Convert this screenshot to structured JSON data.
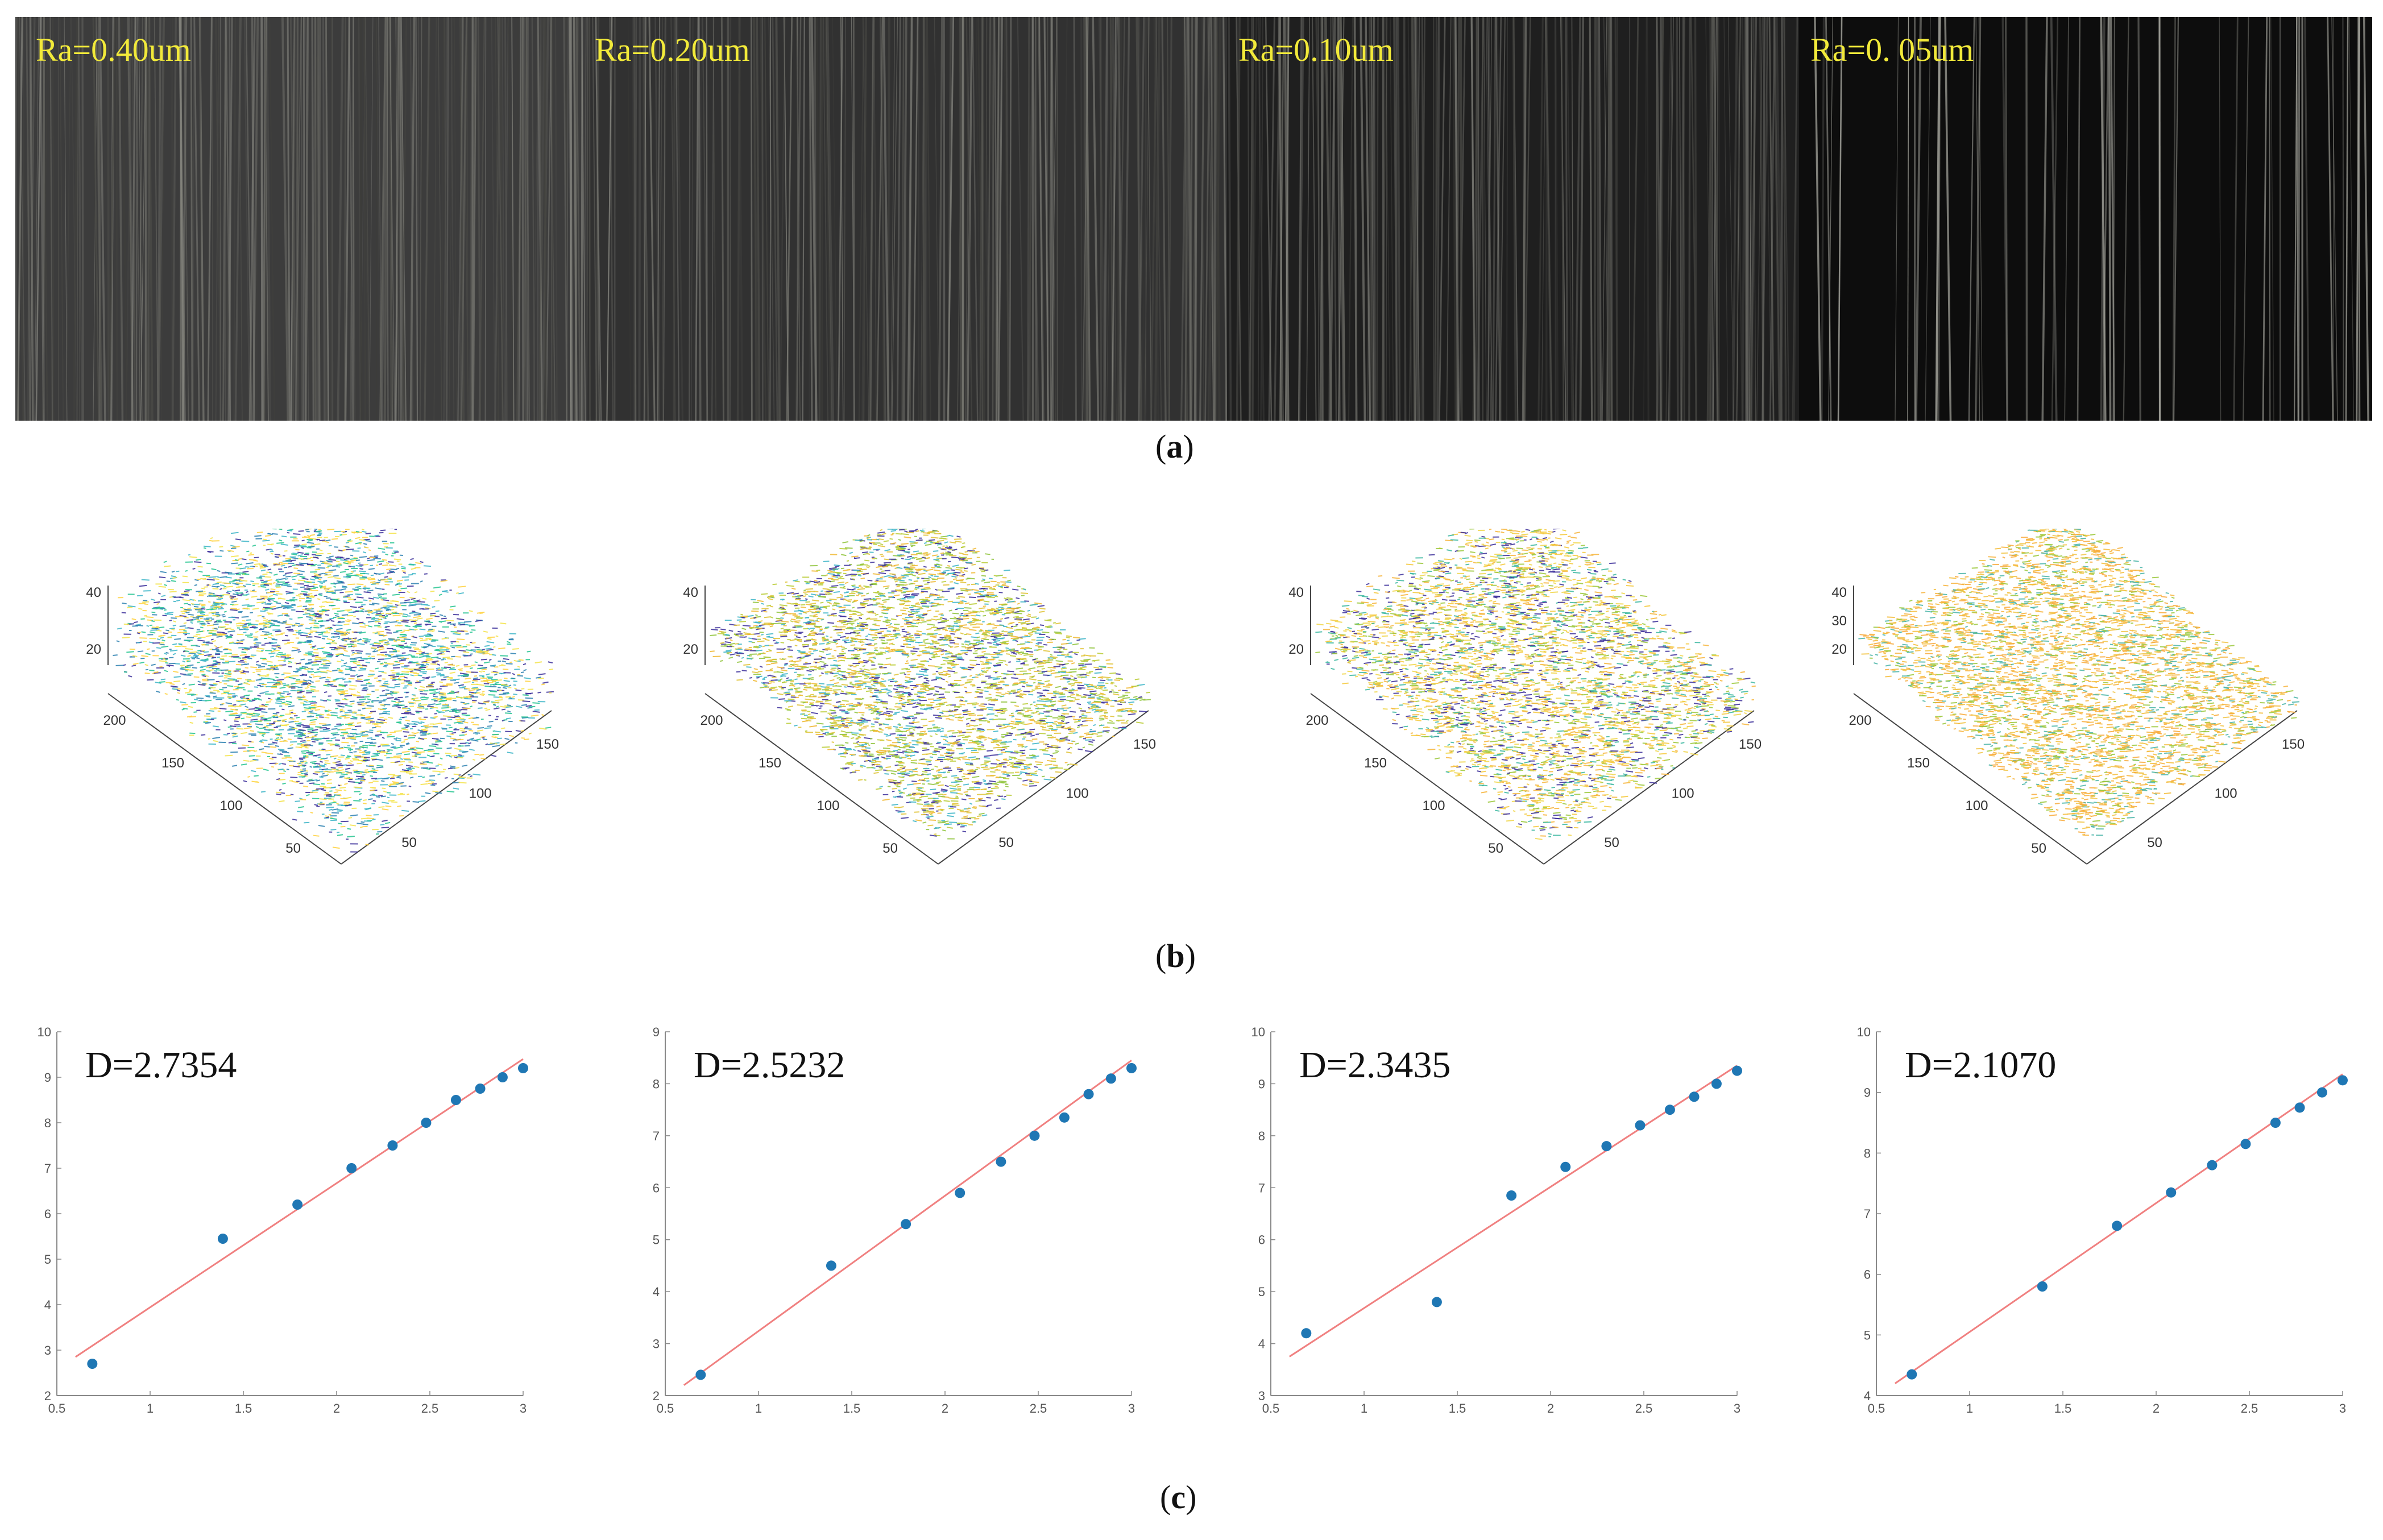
{
  "labels": {
    "a": "a",
    "b": "b",
    "c": "c"
  },
  "texture_strips": [
    {
      "label": "Ra=0.40um",
      "tone": "#3c3c3c"
    },
    {
      "label": "Ra=0.20um",
      "tone": "#313131"
    },
    {
      "label": "Ra=0.10um",
      "tone": "#1f1f1f"
    },
    {
      "label": "Ra=0. 05um",
      "tone": "#0d0d0d"
    }
  ],
  "surfaces": [
    {
      "z_ticks": [
        "40",
        "20"
      ],
      "y_ticks": [
        "200",
        "150",
        "100",
        "50"
      ],
      "x_ticks": [
        "150",
        "100",
        "50"
      ],
      "palette": [
        "#f4e34a",
        "#3bb5c7",
        "#2a7fb0",
        "#3a2d9a",
        "#ffd23e",
        "#23c48f"
      ]
    },
    {
      "z_ticks": [
        "40",
        "20"
      ],
      "y_ticks": [
        "200",
        "150",
        "100",
        "50"
      ],
      "x_ticks": [
        "150",
        "100",
        "50"
      ],
      "palette": [
        "#b9cc35",
        "#e0c233",
        "#f0b830",
        "#8fc43a",
        "#3a2d9a",
        "#3bb5c7"
      ]
    },
    {
      "z_ticks": [
        "40",
        "20"
      ],
      "y_ticks": [
        "200",
        "150",
        "100",
        "50"
      ],
      "x_ticks": [
        "150",
        "100",
        "50"
      ],
      "palette": [
        "#f6b43a",
        "#f5c93d",
        "#9cc83b",
        "#3bb8a0",
        "#f0d64a",
        "#3a2d9a"
      ]
    },
    {
      "z_ticks": [
        "40",
        "30",
        "20"
      ],
      "y_ticks": [
        "200",
        "150",
        "100",
        "50"
      ],
      "x_ticks": [
        "150",
        "100",
        "50"
      ],
      "palette": [
        "#f7b33c",
        "#f5bd3a",
        "#f2c547",
        "#4ab5a8",
        "#f8aa3a",
        "#9bc83b"
      ]
    }
  ],
  "chart_data": [
    {
      "type": "scatter",
      "title": "D=2.7354",
      "xlim": [
        0.5,
        3
      ],
      "ylim": [
        2,
        10
      ],
      "xticks": [
        "0.5",
        "1",
        "1.5",
        "2",
        "2.5",
        "3"
      ],
      "yticks": [
        "2",
        "3",
        "4",
        "5",
        "6",
        "7",
        "8",
        "9",
        "10"
      ],
      "x": [
        0.69,
        1.39,
        1.79,
        2.08,
        2.3,
        2.48,
        2.64,
        2.77,
        2.89,
        3.0
      ],
      "y": [
        2.7,
        5.45,
        6.2,
        7.0,
        7.5,
        8.0,
        8.5,
        8.75,
        9.0,
        9.2
      ],
      "fit": [
        [
          0.6,
          2.85
        ],
        [
          3.0,
          9.4
        ]
      ],
      "point_color": "#1f77b4",
      "fit_color": "#f08080"
    },
    {
      "type": "scatter",
      "title": "D=2.5232",
      "xlim": [
        0.5,
        3
      ],
      "ylim": [
        2,
        9
      ],
      "xticks": [
        "0.5",
        "1",
        "1.5",
        "2",
        "2.5",
        "3"
      ],
      "yticks": [
        "2",
        "3",
        "4",
        "5",
        "6",
        "7",
        "8",
        "9"
      ],
      "x": [
        0.69,
        1.39,
        1.79,
        2.08,
        2.3,
        2.48,
        2.64,
        2.77,
        2.89,
        3.0
      ],
      "y": [
        2.4,
        4.5,
        5.3,
        5.9,
        6.5,
        7.0,
        7.35,
        7.8,
        8.1,
        8.3
      ],
      "fit": [
        [
          0.6,
          2.2
        ],
        [
          3.0,
          8.45
        ]
      ],
      "point_color": "#1f77b4",
      "fit_color": "#f08080"
    },
    {
      "type": "scatter",
      "title": "D=2.3435",
      "xlim": [
        0.5,
        3
      ],
      "ylim": [
        3,
        10
      ],
      "xticks": [
        "0.5",
        "1",
        "1.5",
        "2",
        "2.5",
        "3"
      ],
      "yticks": [
        "3",
        "4",
        "5",
        "6",
        "7",
        "8",
        "9",
        "10"
      ],
      "x": [
        0.69,
        1.39,
        1.79,
        2.08,
        2.3,
        2.48,
        2.64,
        2.77,
        2.89,
        3.0
      ],
      "y": [
        4.2,
        4.8,
        6.85,
        7.4,
        7.8,
        8.2,
        8.5,
        8.75,
        9.0,
        9.25
      ],
      "fit": [
        [
          0.6,
          3.75
        ],
        [
          3.0,
          9.35
        ]
      ],
      "point_color": "#1f77b4",
      "fit_color": "#f08080"
    },
    {
      "type": "scatter",
      "title": "D=2.1070",
      "xlim": [
        0.5,
        3
      ],
      "ylim": [
        4,
        10
      ],
      "xticks": [
        "0.5",
        "1",
        "1.5",
        "2",
        "2.5",
        "3"
      ],
      "yticks": [
        "4",
        "5",
        "6",
        "7",
        "8",
        "9",
        "10"
      ],
      "x": [
        0.69,
        1.39,
        1.79,
        2.08,
        2.3,
        2.48,
        2.64,
        2.77,
        2.89,
        3.0
      ],
      "y": [
        4.35,
        5.8,
        6.8,
        7.35,
        7.8,
        8.15,
        8.5,
        8.75,
        9.0,
        9.2
      ],
      "fit": [
        [
          0.6,
          4.2
        ],
        [
          3.0,
          9.3
        ]
      ],
      "point_color": "#1f77b4",
      "fit_color": "#f08080"
    }
  ]
}
